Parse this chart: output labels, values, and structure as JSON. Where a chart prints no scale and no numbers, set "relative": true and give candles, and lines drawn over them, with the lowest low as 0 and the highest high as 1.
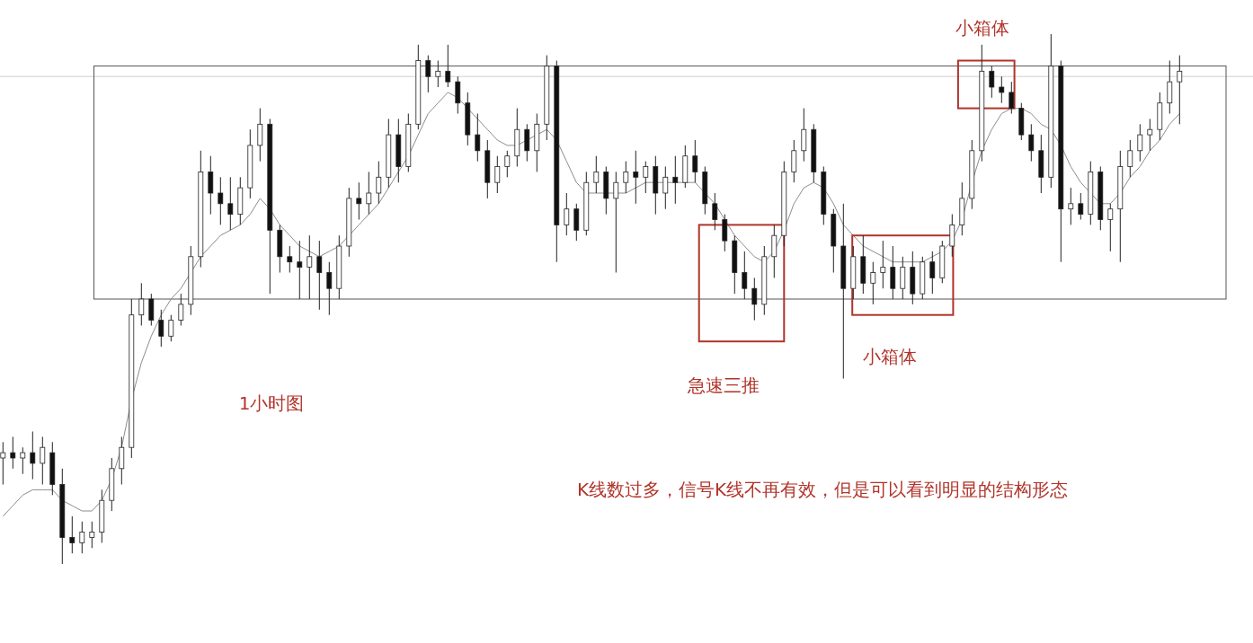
{
  "chart_data": {
    "type": "candlestick",
    "relative": true,
    "categories": [
      null,
      null,
      null,
      null,
      null,
      null,
      null,
      null,
      null,
      null,
      null,
      null,
      null,
      null,
      null,
      null,
      null,
      null,
      null,
      null,
      null,
      null,
      null,
      null,
      null,
      null,
      null,
      null,
      null,
      null,
      null,
      null,
      null,
      null,
      null,
      null,
      null,
      null,
      null,
      null,
      null,
      null,
      null,
      null,
      null,
      null,
      null,
      null,
      null,
      null,
      null,
      null,
      null,
      null,
      null,
      null,
      null,
      null,
      null,
      null,
      null,
      null,
      null,
      null,
      null,
      null,
      null,
      null,
      null,
      null,
      null,
      null,
      null,
      null,
      null,
      null,
      null,
      null,
      null,
      null,
      null,
      null,
      null,
      null,
      null,
      null,
      null,
      null,
      null,
      null,
      null,
      null,
      null,
      null,
      null,
      null,
      null,
      null,
      null,
      null,
      null,
      null,
      null,
      null,
      null,
      null,
      null,
      null,
      null,
      null,
      null,
      null,
      null,
      null,
      null,
      null,
      null,
      null,
      null,
      null
    ],
    "ohlc": [
      [
        0.2,
        0.23,
        0.15,
        0.21
      ],
      [
        0.21,
        0.24,
        0.18,
        0.2
      ],
      [
        0.2,
        0.22,
        0.17,
        0.21
      ],
      [
        0.21,
        0.25,
        0.16,
        0.19
      ],
      [
        0.19,
        0.24,
        0.15,
        0.22
      ],
      [
        0.21,
        0.23,
        0.13,
        0.15
      ],
      [
        0.15,
        0.18,
        0.0,
        0.05
      ],
      [
        0.05,
        0.09,
        0.02,
        0.04
      ],
      [
        0.04,
        0.08,
        0.02,
        0.06
      ],
      [
        0.05,
        0.08,
        0.03,
        0.06
      ],
      [
        0.06,
        0.14,
        0.04,
        0.12
      ],
      [
        0.12,
        0.2,
        0.1,
        0.18
      ],
      [
        0.18,
        0.24,
        0.15,
        0.22
      ],
      [
        0.22,
        0.5,
        0.2,
        0.47
      ],
      [
        0.47,
        0.53,
        0.45,
        0.5
      ],
      [
        0.5,
        0.51,
        0.45,
        0.46
      ],
      [
        0.46,
        0.48,
        0.41,
        0.43
      ],
      [
        0.43,
        0.47,
        0.42,
        0.46
      ],
      [
        0.46,
        0.51,
        0.45,
        0.49
      ],
      [
        0.49,
        0.6,
        0.47,
        0.58
      ],
      [
        0.58,
        0.78,
        0.56,
        0.74
      ],
      [
        0.74,
        0.77,
        0.66,
        0.7
      ],
      [
        0.7,
        0.73,
        0.64,
        0.68
      ],
      [
        0.68,
        0.73,
        0.63,
        0.66
      ],
      [
        0.66,
        0.73,
        0.64,
        0.71
      ],
      [
        0.71,
        0.82,
        0.69,
        0.79
      ],
      [
        0.79,
        0.86,
        0.76,
        0.83
      ],
      [
        0.83,
        0.84,
        0.51,
        0.63
      ],
      [
        0.63,
        0.64,
        0.55,
        0.58
      ],
      [
        0.58,
        0.6,
        0.55,
        0.57
      ],
      [
        0.57,
        0.61,
        0.5,
        0.56
      ],
      [
        0.56,
        0.62,
        0.5,
        0.58
      ],
      [
        0.58,
        0.61,
        0.48,
        0.55
      ],
      [
        0.55,
        0.57,
        0.47,
        0.52
      ],
      [
        0.52,
        0.62,
        0.5,
        0.6
      ],
      [
        0.6,
        0.71,
        0.58,
        0.69
      ],
      [
        0.69,
        0.72,
        0.65,
        0.68
      ],
      [
        0.68,
        0.74,
        0.66,
        0.7
      ],
      [
        0.7,
        0.76,
        0.68,
        0.73
      ],
      [
        0.73,
        0.84,
        0.71,
        0.81
      ],
      [
        0.81,
        0.84,
        0.72,
        0.75
      ],
      [
        0.75,
        0.85,
        0.74,
        0.83
      ],
      [
        0.83,
        0.98,
        0.82,
        0.95
      ],
      [
        0.95,
        0.96,
        0.89,
        0.92
      ],
      [
        0.92,
        0.95,
        0.9,
        0.93
      ],
      [
        0.93,
        0.98,
        0.9,
        0.91
      ],
      [
        0.91,
        0.92,
        0.85,
        0.87
      ],
      [
        0.87,
        0.89,
        0.79,
        0.81
      ],
      [
        0.81,
        0.85,
        0.76,
        0.78
      ],
      [
        0.78,
        0.8,
        0.69,
        0.72
      ],
      [
        0.72,
        0.77,
        0.7,
        0.75
      ],
      [
        0.75,
        0.78,
        0.73,
        0.77
      ],
      [
        0.77,
        0.86,
        0.75,
        0.82
      ],
      [
        0.82,
        0.83,
        0.76,
        0.78
      ],
      [
        0.78,
        0.85,
        0.74,
        0.83
      ],
      [
        0.83,
        0.96,
        0.8,
        0.94
      ],
      [
        0.94,
        0.95,
        0.57,
        0.64
      ],
      [
        0.64,
        0.7,
        0.62,
        0.67
      ],
      [
        0.67,
        0.68,
        0.61,
        0.63
      ],
      [
        0.63,
        0.74,
        0.62,
        0.72
      ],
      [
        0.72,
        0.77,
        0.7,
        0.74
      ],
      [
        0.74,
        0.75,
        0.66,
        0.69
      ],
      [
        0.69,
        0.74,
        0.55,
        0.72
      ],
      [
        0.72,
        0.76,
        0.7,
        0.74
      ],
      [
        0.74,
        0.78,
        0.68,
        0.73
      ],
      [
        0.73,
        0.76,
        0.7,
        0.75
      ],
      [
        0.75,
        0.77,
        0.66,
        0.7
      ],
      [
        0.7,
        0.75,
        0.67,
        0.73
      ],
      [
        0.73,
        0.77,
        0.68,
        0.72
      ],
      [
        0.72,
        0.79,
        0.71,
        0.77
      ],
      [
        0.77,
        0.8,
        0.72,
        0.74
      ],
      [
        0.74,
        0.75,
        0.66,
        0.68
      ],
      [
        0.68,
        0.7,
        0.63,
        0.65
      ],
      [
        0.65,
        0.66,
        0.59,
        0.61
      ],
      [
        0.61,
        0.62,
        0.51,
        0.55
      ],
      [
        0.55,
        0.59,
        0.5,
        0.52
      ],
      [
        0.52,
        0.54,
        0.46,
        0.49
      ],
      [
        0.49,
        0.6,
        0.47,
        0.58
      ],
      [
        0.58,
        0.64,
        0.54,
        0.62
      ],
      [
        0.62,
        0.76,
        0.6,
        0.74
      ],
      [
        0.74,
        0.8,
        0.72,
        0.78
      ],
      [
        0.78,
        0.86,
        0.76,
        0.82
      ],
      [
        0.82,
        0.83,
        0.72,
        0.74
      ],
      [
        0.74,
        0.75,
        0.64,
        0.66
      ],
      [
        0.66,
        0.67,
        0.55,
        0.6
      ],
      [
        0.6,
        0.68,
        0.35,
        0.52
      ],
      [
        0.52,
        0.6,
        0.5,
        0.58
      ],
      [
        0.58,
        0.62,
        0.51,
        0.53
      ],
      [
        0.53,
        0.57,
        0.49,
        0.55
      ],
      [
        0.55,
        0.61,
        0.52,
        0.56
      ],
      [
        0.56,
        0.6,
        0.5,
        0.52
      ],
      [
        0.52,
        0.58,
        0.5,
        0.56
      ],
      [
        0.56,
        0.59,
        0.49,
        0.51
      ],
      [
        0.51,
        0.58,
        0.5,
        0.57
      ],
      [
        0.57,
        0.59,
        0.51,
        0.54
      ],
      [
        0.54,
        0.61,
        0.53,
        0.6
      ],
      [
        0.6,
        0.66,
        0.58,
        0.64
      ],
      [
        0.64,
        0.72,
        0.62,
        0.69
      ],
      [
        0.69,
        0.8,
        0.67,
        0.78
      ],
      [
        0.78,
        0.98,
        0.76,
        0.93
      ],
      [
        0.93,
        0.94,
        0.88,
        0.9
      ],
      [
        0.9,
        0.92,
        0.87,
        0.89
      ],
      [
        0.89,
        0.91,
        0.85,
        0.86
      ],
      [
        0.86,
        0.87,
        0.8,
        0.81
      ],
      [
        0.81,
        0.83,
        0.76,
        0.78
      ],
      [
        0.78,
        0.81,
        0.7,
        0.73
      ],
      [
        0.73,
        1.0,
        0.71,
        0.94
      ],
      [
        0.94,
        0.95,
        0.57,
        0.67
      ],
      [
        0.67,
        0.71,
        0.64,
        0.68
      ],
      [
        0.68,
        0.7,
        0.65,
        0.66
      ],
      [
        0.66,
        0.76,
        0.64,
        0.74
      ],
      [
        0.74,
        0.75,
        0.63,
        0.65
      ],
      [
        0.65,
        0.68,
        0.59,
        0.67
      ],
      [
        0.67,
        0.78,
        0.57,
        0.75
      ],
      [
        0.75,
        0.8,
        0.73,
        0.78
      ],
      [
        0.78,
        0.83,
        0.76,
        0.81
      ],
      [
        0.81,
        0.84,
        0.78,
        0.82
      ],
      [
        0.82,
        0.89,
        0.8,
        0.87
      ],
      [
        0.87,
        0.95,
        0.85,
        0.91
      ],
      [
        0.91,
        0.96,
        0.83,
        0.93
      ]
    ],
    "series": [
      {
        "type": "line",
        "color": "#8c8c8c",
        "values": [
          0.09,
          0.11,
          0.13,
          0.14,
          0.14,
          0.14,
          0.12,
          0.11,
          0.1,
          0.1,
          0.12,
          0.16,
          0.22,
          0.31,
          0.38,
          0.43,
          0.47,
          0.5,
          0.52,
          0.55,
          0.58,
          0.6,
          0.62,
          0.63,
          0.64,
          0.66,
          0.69,
          0.67,
          0.64,
          0.62,
          0.6,
          0.59,
          0.58,
          0.59,
          0.6,
          0.62,
          0.64,
          0.66,
          0.68,
          0.71,
          0.74,
          0.77,
          0.81,
          0.85,
          0.87,
          0.89,
          0.88,
          0.86,
          0.84,
          0.82,
          0.8,
          0.79,
          0.79,
          0.8,
          0.81,
          0.82,
          0.8,
          0.76,
          0.72,
          0.7,
          0.7,
          0.7,
          0.7,
          0.7,
          0.71,
          0.72,
          0.72,
          0.72,
          0.72,
          0.72,
          0.72,
          0.7,
          0.68,
          0.65,
          0.62,
          0.6,
          0.58,
          0.57,
          0.59,
          0.63,
          0.68,
          0.71,
          0.72,
          0.71,
          0.68,
          0.64,
          0.62,
          0.6,
          0.59,
          0.58,
          0.57,
          0.57,
          0.57,
          0.57,
          0.58,
          0.59,
          0.61,
          0.65,
          0.72,
          0.78,
          0.82,
          0.85,
          0.86,
          0.86,
          0.85,
          0.83,
          0.82,
          0.79,
          0.75,
          0.72,
          0.7,
          0.68,
          0.68,
          0.7,
          0.73,
          0.75,
          0.78,
          0.8,
          0.83,
          0.85
        ]
      }
    ],
    "ref_lines": [
      {
        "axis": "y",
        "value": 0.92,
        "color": "#cfcfcf"
      }
    ],
    "annotations": [
      "小箱体",
      "1小时图",
      "急速三推",
      "小箱体",
      "K线数过多，信号K线不再有效，但是可以看到明显的结构形态"
    ]
  }
}
